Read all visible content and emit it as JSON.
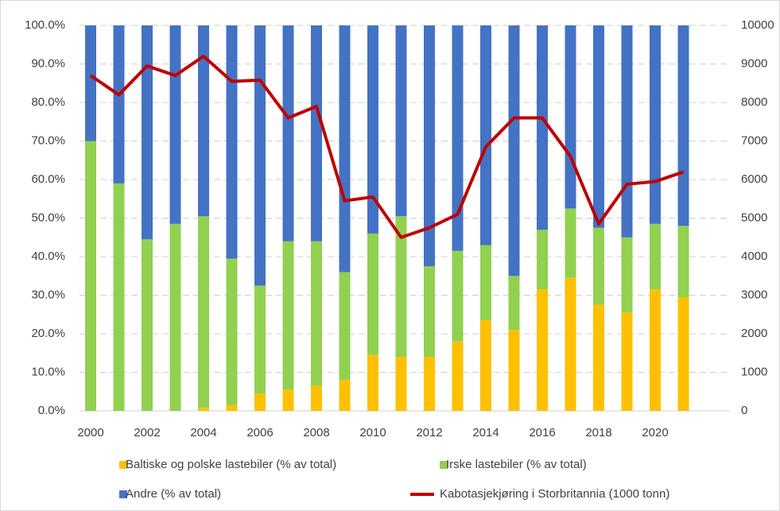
{
  "chart_data": {
    "type": "bar",
    "stacked": true,
    "categories": [
      "2000",
      null,
      "2002",
      null,
      "2004",
      null,
      "2006",
      null,
      "2008",
      null,
      "2010",
      null,
      "2012",
      null,
      "2014",
      null,
      "2016",
      null,
      "2018",
      null,
      "2020",
      null
    ],
    "series": [
      {
        "name": "Baltiske og polske lastebiler (% av total)",
        "color": "#ffc000",
        "values": [
          0,
          0,
          0,
          0,
          0.8,
          1.5,
          4.5,
          5.5,
          6.5,
          8,
          14.5,
          14,
          14,
          18,
          23.5,
          21,
          31.5,
          34.5,
          27.5,
          25.5,
          31.5,
          29.5
        ]
      },
      {
        "name": "Irske lastebiler (% av total)",
        "color": "#92d050",
        "values": [
          70,
          59,
          44.5,
          48.5,
          49.7,
          38,
          28,
          38.5,
          37.5,
          28,
          31.5,
          36.5,
          23.5,
          23.5,
          19.5,
          14,
          15.5,
          18,
          20,
          19.5,
          17,
          18.5
        ]
      },
      {
        "name": "Andre (% av total)",
        "color": "#4472c4",
        "values": [
          30,
          41,
          55.5,
          51.5,
          49.5,
          60.5,
          67.5,
          56,
          56,
          64,
          54,
          49.5,
          62.5,
          58.5,
          57,
          65,
          53,
          47.5,
          52.5,
          55,
          51.5,
          52
        ]
      },
      {
        "name": "Kabotasjekjøring i Storbritannia (1000 tonn)",
        "color": "#c00000",
        "type": "line",
        "axis": "y2",
        "values": [
          8700,
          8200,
          8950,
          8700,
          9200,
          8550,
          8580,
          7600,
          7900,
          5450,
          5550,
          4500,
          4750,
          5100,
          6850,
          7600,
          7600,
          6600,
          4850,
          5880,
          5950,
          6200
        ]
      }
    ],
    "ylim": [
      0,
      100
    ],
    "yticks": [
      {
        "value": 0,
        "label": "0.0%"
      },
      {
        "value": 10,
        "label": "10.0%"
      },
      {
        "value": 20,
        "label": "20.0%"
      },
      {
        "value": 30,
        "label": "30.0%"
      },
      {
        "value": 40,
        "label": "40.0%"
      },
      {
        "value": 50,
        "label": "50.0%"
      },
      {
        "value": 60,
        "label": "60.0%"
      },
      {
        "value": 70,
        "label": "70.0%"
      },
      {
        "value": 80,
        "label": "80.0%"
      },
      {
        "value": 90,
        "label": "90.0%"
      },
      {
        "value": 100,
        "label": "100.0%"
      }
    ],
    "y2lim": [
      0,
      10000
    ],
    "y2ticks": [
      0,
      1000,
      2000,
      3000,
      4000,
      5000,
      6000,
      7000,
      8000,
      9000,
      10000
    ],
    "grid": true
  }
}
